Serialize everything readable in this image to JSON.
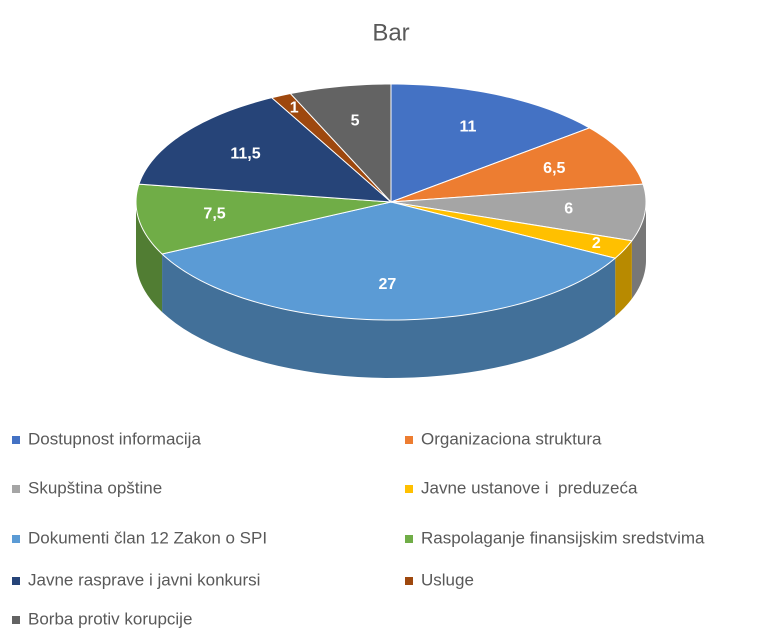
{
  "chart_data": {
    "type": "pie",
    "title": "Bar",
    "categories": [
      "Dostupnost informacija",
      "Organizaciona struktura",
      "Skupština opštine",
      "Javne ustanove i  preduzeća",
      "Dokumenti član 12 Zakon o SPI",
      "Raspolaganje finansijskim sredstvima",
      "Javne rasprave i javni konkursi",
      "Usluge",
      "Borba protiv korupcije"
    ],
    "values": [
      11,
      6.5,
      6,
      2,
      27,
      7.5,
      11.5,
      1,
      5
    ],
    "value_labels": [
      "11",
      "6,5",
      "6",
      "2",
      "27",
      "7,5",
      "11,5",
      "1",
      "5"
    ],
    "colors": [
      "#4472c4",
      "#ed7d31",
      "#a5a5a5",
      "#ffc000",
      "#5b9bd5",
      "#70ad47",
      "#264478",
      "#9e480e",
      "#636363"
    ],
    "legend": "bottom"
  }
}
